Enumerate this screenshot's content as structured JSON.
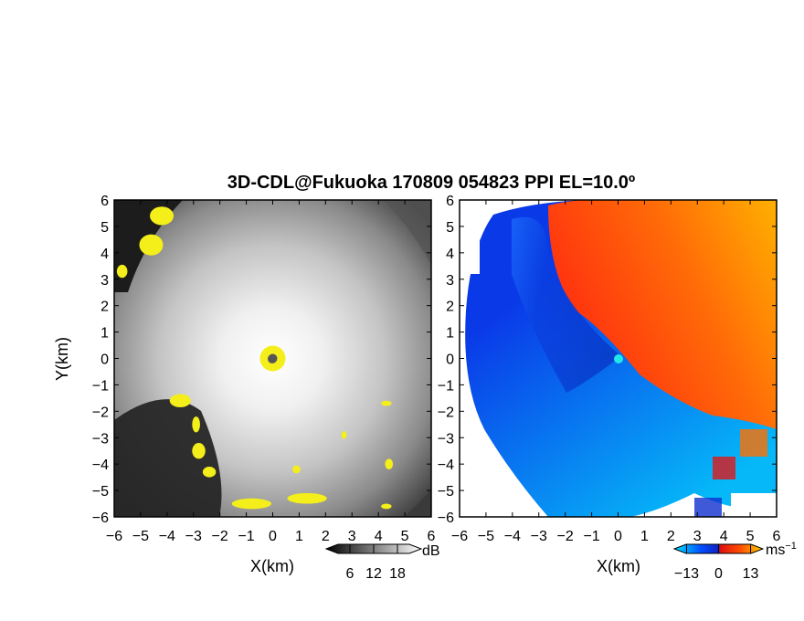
{
  "title": "3D-CDL@Fukuoka 170809 054823 PPI EL=10.0º",
  "chart_data": [
    {
      "type": "heatmap",
      "quantity": "backscatter intensity",
      "xlabel": "X(km)",
      "ylabel": "Y(km)",
      "xlim": [
        -6,
        6
      ],
      "ylim": [
        -6,
        6
      ],
      "xticks": [
        "−6",
        "−5",
        "−4",
        "−3",
        "−2",
        "−1",
        "0",
        "1",
        "2",
        "3",
        "4",
        "5",
        "6"
      ],
      "yticks": [
        "6",
        "5",
        "4",
        "3",
        "2",
        "1",
        "0",
        "−1",
        "−2",
        "−3",
        "−4",
        "−5",
        "−6"
      ],
      "colorbar": {
        "unit": "dB",
        "ticks": [
          6,
          12,
          18
        ],
        "tick_labels": [
          "6",
          "12",
          "18"
        ],
        "range": [
          0,
          24
        ],
        "colors": [
          "#000000",
          "#ffffff"
        ]
      },
      "highlight_color": "#f4ee1a",
      "radar_site": [
        0,
        0
      ],
      "features": [
        {
          "kind": "strong-echo",
          "x": -4.2,
          "y": 5.4,
          "dx": 0.9,
          "dy": 0.7
        },
        {
          "kind": "strong-echo",
          "x": -4.6,
          "y": 4.3,
          "dx": 0.9,
          "dy": 0.8
        },
        {
          "kind": "strong-echo",
          "x": -5.7,
          "y": 3.3,
          "dx": 0.4,
          "dy": 0.5
        },
        {
          "kind": "strong-echo",
          "x": -3.5,
          "y": -1.6,
          "dx": 0.8,
          "dy": 0.5
        },
        {
          "kind": "strong-echo",
          "x": -2.9,
          "y": -2.5,
          "dx": 0.3,
          "dy": 0.6
        },
        {
          "kind": "strong-echo",
          "x": -2.8,
          "y": -3.5,
          "dx": 0.5,
          "dy": 0.6
        },
        {
          "kind": "strong-echo",
          "x": -2.4,
          "y": -4.3,
          "dx": 0.5,
          "dy": 0.4
        },
        {
          "kind": "strong-echo",
          "x": -0.8,
          "y": -5.5,
          "dx": 1.5,
          "dy": 0.4
        },
        {
          "kind": "strong-echo",
          "x": 1.3,
          "y": -5.3,
          "dx": 1.5,
          "dy": 0.4
        },
        {
          "kind": "strong-echo",
          "x": 0.9,
          "y": -4.2,
          "dx": 0.3,
          "dy": 0.3
        },
        {
          "kind": "strong-echo",
          "x": 4.3,
          "y": -1.7,
          "dx": 0.4,
          "dy": 0.2
        },
        {
          "kind": "strong-echo",
          "x": 4.4,
          "y": -4.0,
          "dx": 0.3,
          "dy": 0.4
        },
        {
          "kind": "strong-echo",
          "x": 4.3,
          "y": -5.6,
          "dx": 0.4,
          "dy": 0.2
        },
        {
          "kind": "strong-echo",
          "x": 2.7,
          "y": -2.9,
          "dx": 0.2,
          "dy": 0.3
        }
      ]
    },
    {
      "type": "heatmap",
      "quantity": "radial velocity",
      "xlabel": "X(km)",
      "ylabel": "",
      "xlim": [
        -6,
        6
      ],
      "ylim": [
        -6,
        6
      ],
      "xticks": [
        "−6",
        "−5",
        "−4",
        "−3",
        "−2",
        "−1",
        "0",
        "1",
        "2",
        "3",
        "4",
        "5",
        "6"
      ],
      "yticks": [
        "6",
        "5",
        "4",
        "3",
        "2",
        "1",
        "0",
        "−1",
        "−2",
        "−3",
        "−4",
        "−5",
        "−6"
      ],
      "colorbar": {
        "unit": "ms",
        "unit_exponent": "−1",
        "ticks": [
          -13,
          0,
          13
        ],
        "tick_labels": [
          "−13",
          "0",
          "13"
        ],
        "range": [
          -18,
          18
        ],
        "colors": [
          "#00e4ff",
          "#0050ff",
          "#1020c0",
          "#e01010",
          "#ff5000",
          "#ffa000",
          "#ffd000"
        ]
      },
      "radar_site": [
        0,
        0
      ],
      "site_marker_color": "#20e8e8"
    }
  ]
}
